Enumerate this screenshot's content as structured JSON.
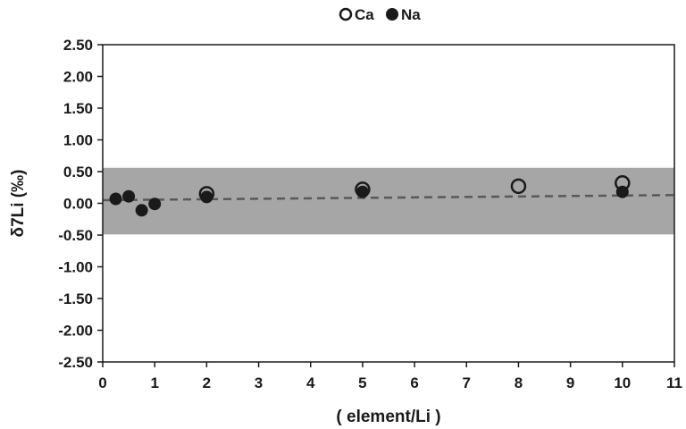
{
  "chart_data": {
    "type": "scatter",
    "xlabel": "( element/Li )",
    "ylabel": "δ7Li (‰)",
    "xlim": [
      0,
      11
    ],
    "ylim": [
      -2.5,
      2.5
    ],
    "x_ticks": [
      "0",
      "1",
      "2",
      "3",
      "4",
      "5",
      "6",
      "7",
      "8",
      "9",
      "10",
      "11"
    ],
    "y_ticks": [
      "2.50",
      "2.00",
      "1.50",
      "1.00",
      "0.50",
      "0.00",
      "-0.50",
      "-1.00",
      "-1.50",
      "-2.00",
      "-2.50"
    ],
    "grid": false,
    "legend_position": "top",
    "series": [
      {
        "name": "Ca",
        "marker": "open-circle",
        "points": [
          {
            "x": 2,
            "y": 0.15
          },
          {
            "x": 5,
            "y": 0.22
          },
          {
            "x": 8,
            "y": 0.27
          },
          {
            "x": 10,
            "y": 0.32
          }
        ]
      },
      {
        "name": "Na",
        "marker": "filled-circle",
        "points": [
          {
            "x": 0.25,
            "y": 0.07
          },
          {
            "x": 0.5,
            "y": 0.11
          },
          {
            "x": 0.75,
            "y": -0.11
          },
          {
            "x": 1,
            "y": -0.01
          },
          {
            "x": 2,
            "y": 0.1
          },
          {
            "x": 5,
            "y": 0.18
          },
          {
            "x": 10,
            "y": 0.18
          }
        ]
      }
    ],
    "band": {
      "y_low": -0.49,
      "y_high": 0.56,
      "color": "#a6a6a6"
    },
    "trendline": {
      "x": [
        0,
        11
      ],
      "y": [
        0.05,
        0.13
      ],
      "style": "dashed",
      "color": "#595959"
    },
    "marker_color": "#1a1a1a"
  }
}
